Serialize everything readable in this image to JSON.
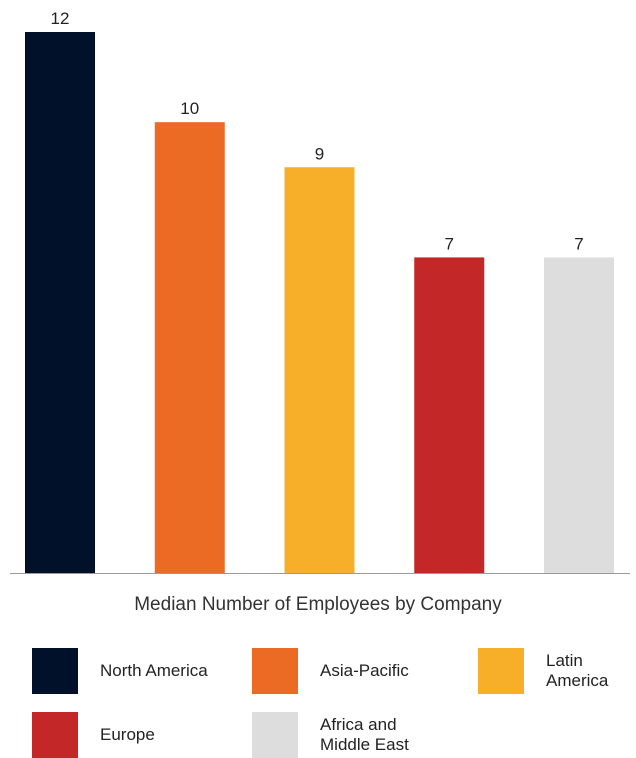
{
  "chart_data": {
    "type": "bar",
    "caption": "Median Number of Employees by Company",
    "categories": [
      "North America",
      "Asia-Pacific",
      "Latin America",
      "Europe",
      "Africa and Middle East"
    ],
    "values": [
      12,
      10,
      9,
      7,
      7
    ],
    "colors": [
      "#02112a",
      "#eb6a24",
      "#f7ae29",
      "#c32727",
      "#dddddd"
    ],
    "ylim": [
      0,
      12
    ],
    "grid": false,
    "legend_position": "bottom"
  },
  "legend": [
    {
      "label": "North America",
      "color": "#02112a"
    },
    {
      "label": "Asia-Pacific",
      "color": "#eb6a24"
    },
    {
      "label": "Latin America",
      "color": "#f7ae29"
    },
    {
      "label": "Europe",
      "color": "#c32727"
    },
    {
      "label": "Africa and Middle East",
      "color": "#dddddd"
    }
  ]
}
